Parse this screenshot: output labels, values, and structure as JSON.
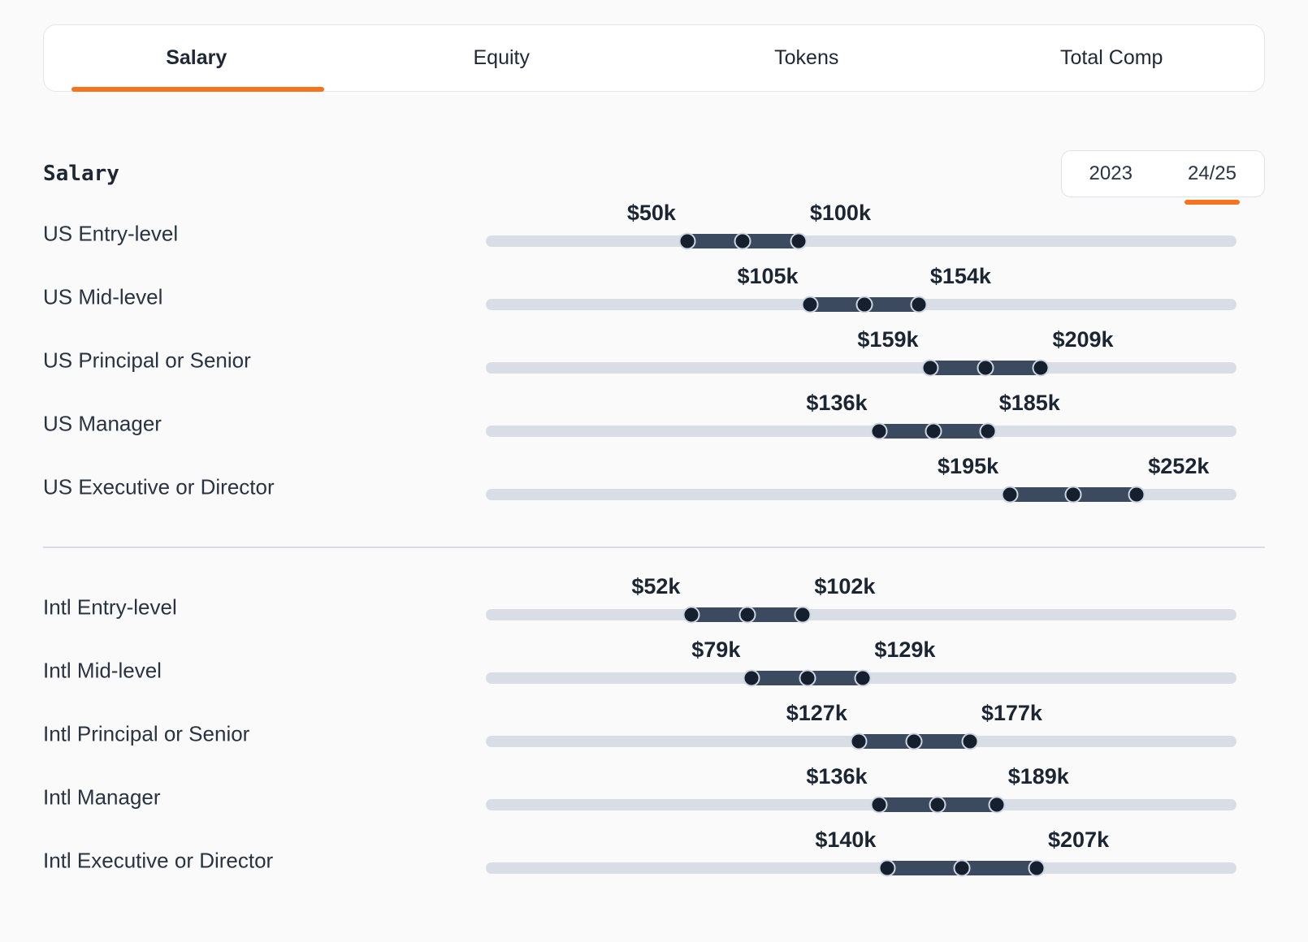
{
  "tab_bar": {
    "tabs": [
      {
        "label": "Salary",
        "active": true
      },
      {
        "label": "Equity",
        "active": false
      },
      {
        "label": "Tokens",
        "active": false
      },
      {
        "label": "Total Comp",
        "active": false
      }
    ]
  },
  "section": {
    "heading": "Salary",
    "year_toggle": {
      "options": [
        {
          "label": "2023",
          "active": false
        },
        {
          "label": "24/25",
          "active": true
        }
      ]
    }
  },
  "chart_data": {
    "type": "range_sliders",
    "unit": "USD thousands",
    "axis": {
      "min_k": -40.5,
      "max_k": 296.8
    },
    "groups": [
      {
        "id": "us",
        "rows": [
          {
            "label": "US Entry-level",
            "low_k": 50,
            "high_k": 100,
            "low_label": "$50k",
            "high_label": "$100k"
          },
          {
            "label": "US Mid-level",
            "low_k": 105,
            "high_k": 154,
            "low_label": "$105k",
            "high_label": "$154k"
          },
          {
            "label": "US Principal or Senior",
            "low_k": 159,
            "high_k": 209,
            "low_label": "$159k",
            "high_label": "$209k"
          },
          {
            "label": "US Manager",
            "low_k": 136,
            "high_k": 185,
            "low_label": "$136k",
            "high_label": "$185k"
          },
          {
            "label": "US Executive or Director",
            "low_k": 195,
            "high_k": 252,
            "low_label": "$195k",
            "high_label": "$252k"
          }
        ]
      },
      {
        "id": "intl",
        "rows": [
          {
            "label": "Intl Entry-level",
            "low_k": 52,
            "high_k": 102,
            "low_label": "$52k",
            "high_label": "$102k"
          },
          {
            "label": "Intl Mid-level",
            "low_k": 79,
            "high_k": 129,
            "low_label": "$79k",
            "high_label": "$129k"
          },
          {
            "label": "Intl Principal or Senior",
            "low_k": 127,
            "high_k": 177,
            "low_label": "$127k",
            "high_label": "$177k"
          },
          {
            "label": "Intl Manager",
            "low_k": 136,
            "high_k": 189,
            "low_label": "$136k",
            "high_label": "$189k"
          },
          {
            "label": "Intl Executive or Director",
            "low_k": 140,
            "high_k": 207,
            "low_label": "$140k",
            "high_label": "$207k"
          }
        ]
      }
    ]
  },
  "colors": {
    "accent_orange": "#f4741f",
    "track_gray": "#d9dee6",
    "range_slate": "#3b4a5e",
    "handle_navy": "#161f2e",
    "handle_ring": "#ccd6e2",
    "background": "#fafafa"
  }
}
